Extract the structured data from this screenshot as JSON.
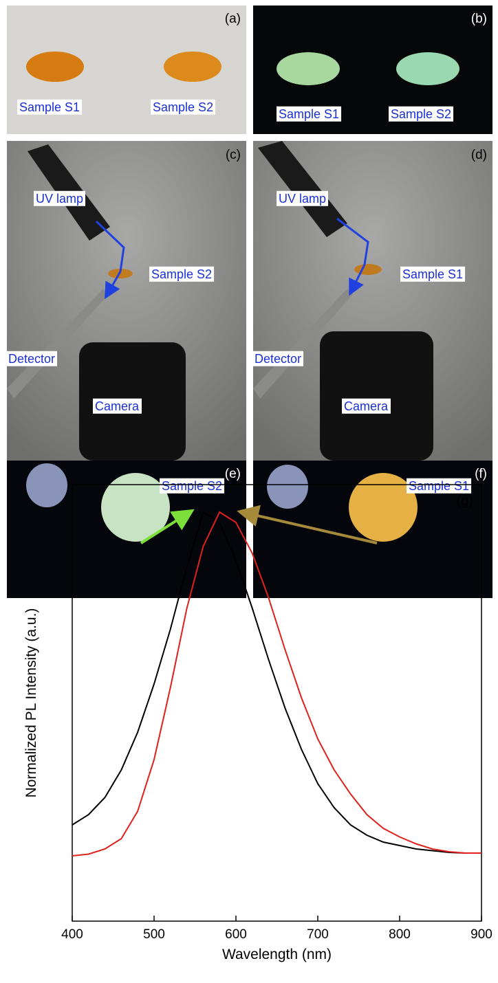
{
  "panels": [
    {
      "tag": "(a)",
      "labels": [
        "Sample S1",
        "Sample S2"
      ]
    },
    {
      "tag": "(b)",
      "labels": [
        "Sample S1",
        "Sample S2"
      ]
    },
    {
      "tag": "(c)",
      "labels": [
        "UV lamp",
        "Sample S2",
        "Detector",
        "Camera"
      ]
    },
    {
      "tag": "(d)",
      "labels": [
        "UV lamp",
        "Sample S1",
        "Detector",
        "Camera"
      ]
    },
    {
      "tag": "(e)",
      "labels": [
        "Sample S2"
      ]
    },
    {
      "tag": "(f)",
      "labels": [
        "Sample S1"
      ]
    }
  ],
  "chart_data": {
    "type": "line",
    "annotation": "(g)",
    "xlabel": "Wavelength (nm)",
    "ylabel": "Normalized PL Intensity (a.u.)",
    "x": [
      400,
      420,
      440,
      460,
      480,
      500,
      520,
      540,
      560,
      580,
      600,
      620,
      640,
      660,
      680,
      700,
      720,
      740,
      760,
      780,
      800,
      820,
      840,
      860,
      880,
      900
    ],
    "series": [
      {
        "color": "#000000",
        "values": [
          0.09,
          0.12,
          0.17,
          0.25,
          0.36,
          0.5,
          0.66,
          0.84,
          1.0,
          0.97,
          0.86,
          0.72,
          0.57,
          0.43,
          0.31,
          0.21,
          0.14,
          0.09,
          0.06,
          0.04,
          0.03,
          0.02,
          0.015,
          0.01,
          0.008,
          0.008
        ]
      },
      {
        "color": "#e0201c",
        "values": [
          0.0,
          0.005,
          0.02,
          0.05,
          0.13,
          0.28,
          0.49,
          0.72,
          0.9,
          1.0,
          0.97,
          0.88,
          0.75,
          0.6,
          0.46,
          0.34,
          0.25,
          0.18,
          0.12,
          0.08,
          0.055,
          0.035,
          0.02,
          0.012,
          0.008,
          0.008
        ]
      }
    ],
    "xlim": [
      400,
      900
    ],
    "xticks": [
      400,
      500,
      600,
      700,
      800,
      900
    ],
    "ylim": [
      -0.19,
      1.08
    ]
  }
}
